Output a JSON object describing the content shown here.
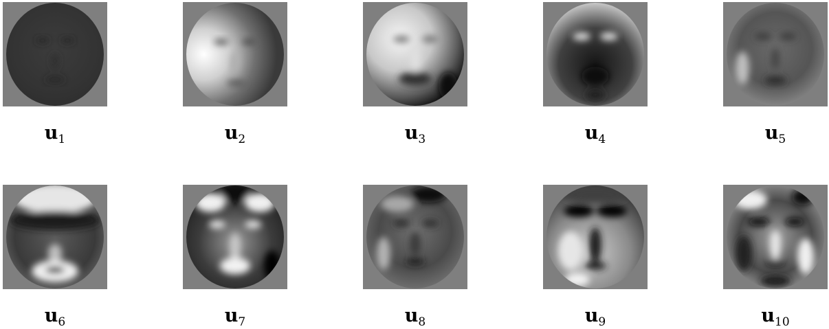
{
  "faces": [
    {
      "symbol": "u",
      "index": "1",
      "icon": "eigenface-1",
      "background": "#7f7f7f"
    },
    {
      "symbol": "u",
      "index": "2",
      "icon": "eigenface-2",
      "background": "#7f7f7f"
    },
    {
      "symbol": "u",
      "index": "3",
      "icon": "eigenface-3",
      "background": "#7f7f7f"
    },
    {
      "symbol": "u",
      "index": "4",
      "icon": "eigenface-4",
      "background": "#7f7f7f"
    },
    {
      "symbol": "u",
      "index": "5",
      "icon": "eigenface-5",
      "background": "#7f7f7f"
    },
    {
      "symbol": "u",
      "index": "6",
      "icon": "eigenface-6",
      "background": "#7f7f7f"
    },
    {
      "symbol": "u",
      "index": "7",
      "icon": "eigenface-7",
      "background": "#7f7f7f"
    },
    {
      "symbol": "u",
      "index": "8",
      "icon": "eigenface-8",
      "background": "#7f7f7f"
    },
    {
      "symbol": "u",
      "index": "9",
      "icon": "eigenface-9",
      "background": "#7f7f7f"
    },
    {
      "symbol": "u",
      "index": "10",
      "icon": "eigenface-10",
      "background": "#7f7f7f"
    }
  ]
}
